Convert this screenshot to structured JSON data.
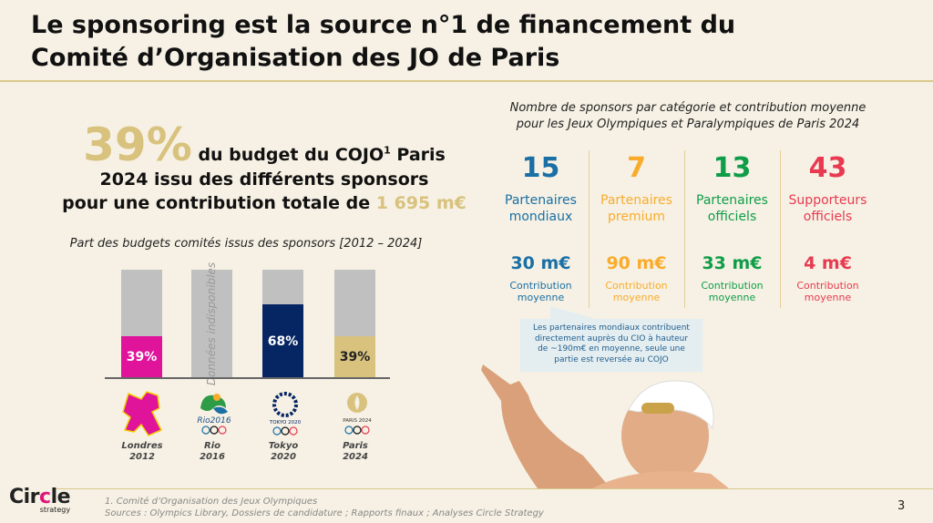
{
  "title": {
    "line1": "Le sponsoring est la source n°1 de financement du",
    "line2": "Comité d’Organisation des JO de Paris"
  },
  "headline": {
    "pct": "39%",
    "t1": " du budget du COJO",
    "sup": "1",
    "t2": " Paris",
    "t3": "2024 issu des différents sponsors",
    "t4": "pour une contribution totale de ",
    "total": "1 695 m€"
  },
  "chart_data": {
    "type": "bar",
    "title": "Part des budgets comités issus des sponsors [2012 – 2024]",
    "categories": [
      "Londres 2012",
      "Rio 2016",
      "Tokyo 2020",
      "Paris 2024"
    ],
    "values": [
      39,
      null,
      68,
      39
    ],
    "ylim": [
      0,
      100
    ],
    "labels": [
      "39%",
      "Données indisponibles",
      "68%",
      "39%"
    ],
    "colors": [
      "#e0139b",
      "#c0c0c0",
      "#062563",
      "#d8c27e"
    ],
    "cities": [
      {
        "name": "Londres",
        "year": "2012"
      },
      {
        "name": "Rio",
        "year": "2016"
      },
      {
        "name": "Tokyo",
        "year": "2020"
      },
      {
        "name": "Paris",
        "year": "2024"
      }
    ]
  },
  "right": {
    "subtitle1": "Nombre de sponsors par catégorie et contribution moyenne",
    "subtitle2": "pour les Jeux Olympiques et Paralympiques de Paris 2024",
    "cols": [
      {
        "n": "15",
        "l1": "Partenaires",
        "l2": "mondiaux",
        "v": "30 m€",
        "c1": "Contribution",
        "c2": "moyenne",
        "color": "#1a6fa5"
      },
      {
        "n": "7",
        "l1": "Partenaires",
        "l2": "premium",
        "v": "90 m€",
        "c1": "Contribution",
        "c2": "moyenne",
        "color": "#f9ac2c"
      },
      {
        "n": "13",
        "l1": "Partenaires",
        "l2": "officiels",
        "v": "33 m€",
        "c1": "Contribution",
        "c2": "moyenne",
        "color": "#0f9d48"
      },
      {
        "n": "43",
        "l1": "Supporteurs",
        "l2": "officiels",
        "v": "4 m€",
        "c1": "Contribution",
        "c2": "moyenne",
        "color": "#e83a50"
      }
    ],
    "callout": [
      "Les partenaires mondiaux contribuent",
      "directement auprès du CIO à hauteur",
      "de ~190m€ en moyenne, seule une",
      "partie est reversée au COJO"
    ]
  },
  "footer": {
    "note": "1.  Comité d’Organisation des Jeux Olympiques",
    "sources": "Sources : Olympics Library, Dossiers de candidature ; Rapports finaux ; Analyses Circle Strategy",
    "page": "3",
    "brand1": "Cir",
    "brand2": "c",
    "brand3": "le",
    "brand_sub": "strategy"
  }
}
